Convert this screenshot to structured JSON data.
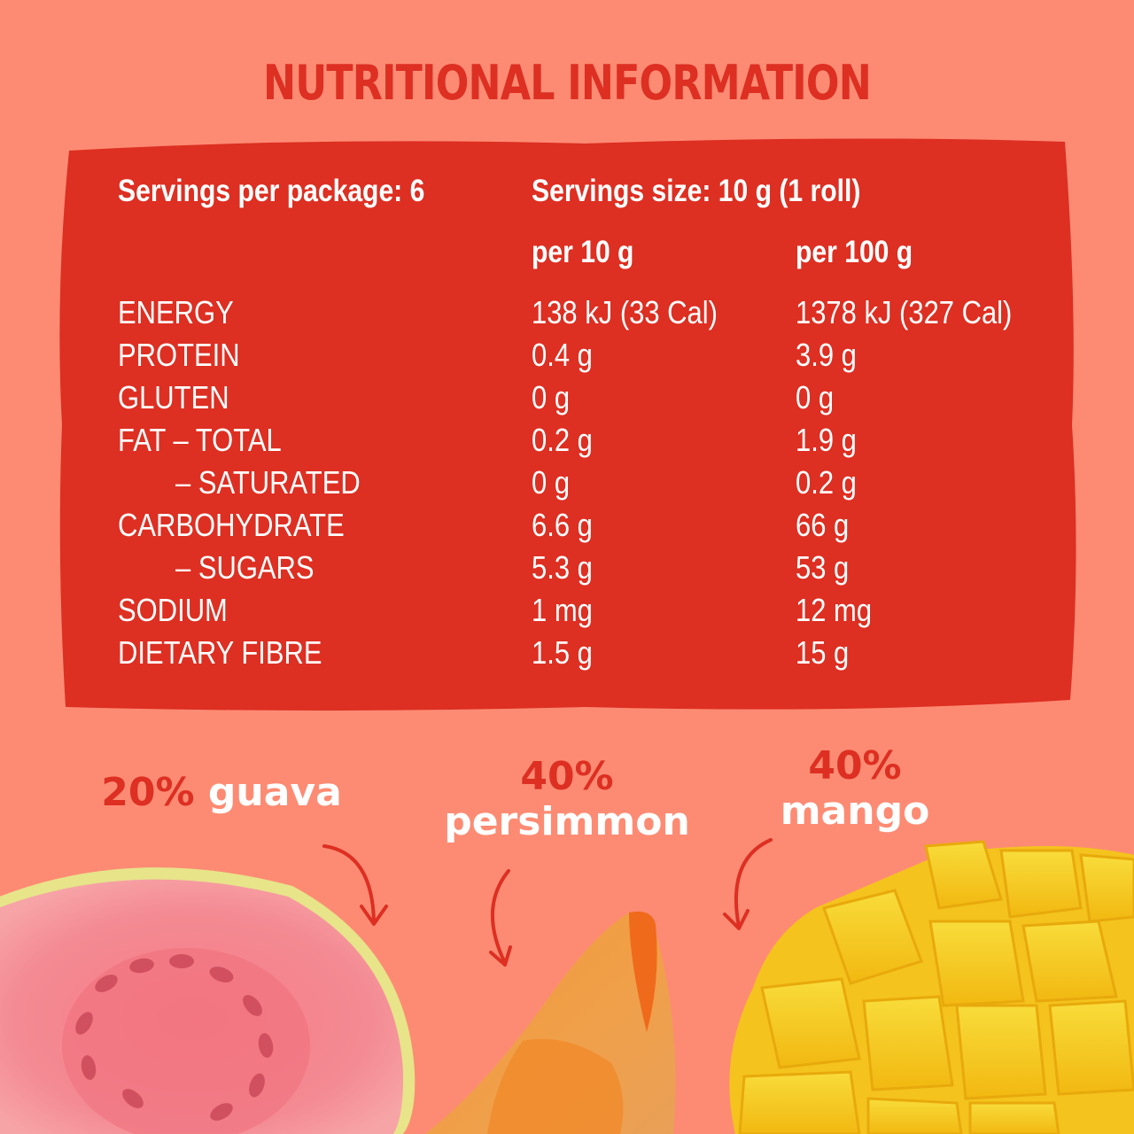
{
  "title": "NUTRITIONAL INFORMATION",
  "colors": {
    "background": "#fd8b73",
    "panel": "#dd2f22",
    "accent": "#dd2f22",
    "text_on_panel": "#ffffff"
  },
  "servings": {
    "per_package": "Servings per package: 6",
    "size": "Servings size: 10 g (1 roll)"
  },
  "columns": {
    "per_serving": "per 10 g",
    "per_100": "per 100 g"
  },
  "rows": [
    {
      "label": "ENERGY",
      "per_serving": "138 kJ (33 Cal)",
      "per_100": "1378 kJ (327 Cal)"
    },
    {
      "label": "PROTEIN",
      "per_serving": "0.4 g",
      "per_100": "3.9 g"
    },
    {
      "label": "GLUTEN",
      "per_serving": "0 g",
      "per_100": "0 g"
    },
    {
      "label": "FAT – TOTAL",
      "per_serving": "0.2 g",
      "per_100": "1.9 g"
    },
    {
      "label": "– SATURATED",
      "per_serving": "0 g",
      "per_100": "0.2 g"
    },
    {
      "label": "CARBOHYDRATE",
      "per_serving": "6.6 g",
      "per_100": "66 g"
    },
    {
      "label": "– SUGARS",
      "per_serving": "5.3 g",
      "per_100": "53 g"
    },
    {
      "label": "SODIUM",
      "per_serving": "1 mg",
      "per_100": "12 mg"
    },
    {
      "label": "DIETARY FIBRE",
      "per_serving": "1.5 g",
      "per_100": "15 g"
    }
  ],
  "ingredients": [
    {
      "percent": "20%",
      "name": "guava"
    },
    {
      "percent": "40%",
      "name": "persimmon"
    },
    {
      "percent": "40%",
      "name": "mango"
    }
  ]
}
